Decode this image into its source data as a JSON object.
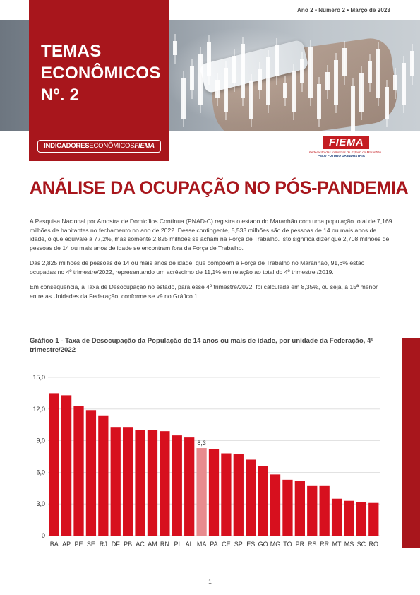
{
  "header": {
    "issue": "Ano 2 • Número 2 • Março de 2023",
    "title_lines": [
      "TEMAS",
      "ECONÔMICOS",
      "Nº. 2"
    ],
    "badge_part1": "INDICADORES",
    "badge_part2": "ECONÔMICOS",
    "badge_part3": "FIEMA",
    "logo_text": "FIEMA",
    "logo_sub1": "Federação das Indústrias do Estado do Maranhão",
    "logo_sub2": "PELO FUTURO DA INDÚSTRIA"
  },
  "article": {
    "headline": "ANÁLISE DA OCUPAÇÃO NO PÓS-PANDEMIA",
    "paragraphs": [
      "A Pesquisa Nacional por Amostra de Domicílios Contínua (PNAD-C) registra o estado do Maranhão com uma população total de 7,169 milhões de habitantes no fechamento no ano de 2022. Desse contingente, 5,533 milhões são de pessoas de 14 ou mais anos de idade, o que equivale a 77,2%, mas somente 2,825 milhões se acham na Força de Trabalho. Isto significa dizer que 2,708 milhões de pessoas de 14 ou mais anos de idade se encontram fora da Força de Trabalho.",
      "Das 2,825 milhões de pessoas de 14 ou mais anos de idade, que compõem a Força de Trabalho no Maranhão, 91,6% estão ocupadas no 4º trimestre/2022, representando um acréscimo de 11,1% em relação ao total do 4º trimestre /2019.",
      "Em consequência, a Taxa de Desocupação no estado, para esse 4º trimestre/2022, foi calculada em 8,35%, ou seja, a 15ª menor entre as Unidades da Federação, conforme se vê no Gráfico 1."
    ]
  },
  "page_number": "1",
  "colors": {
    "brand_red": "#a8161c",
    "bar_red": "#d7101e",
    "highlight_bar": "#e88b8e"
  },
  "chart_data": {
    "type": "bar",
    "title": "Gráfico 1 - Taxa de Desocupação da População de 14 anos ou mais de idade, por unidade da Federação, 4º trimestre/2022",
    "categories": [
      "BA",
      "AP",
      "PE",
      "SE",
      "RJ",
      "DF",
      "PB",
      "AC",
      "AM",
      "RN",
      "PI",
      "AL",
      "MA",
      "PA",
      "CE",
      "SP",
      "ES",
      "GO",
      "MG",
      "TO",
      "PR",
      "RS",
      "RR",
      "MT",
      "MS",
      "SC",
      "RO"
    ],
    "values": [
      13.5,
      13.3,
      12.3,
      11.9,
      11.4,
      10.3,
      10.3,
      10.0,
      10.0,
      9.9,
      9.5,
      9.3,
      8.3,
      8.2,
      7.8,
      7.7,
      7.2,
      6.6,
      5.8,
      5.3,
      5.2,
      4.7,
      4.7,
      3.5,
      3.3,
      3.2,
      3.1
    ],
    "highlight": "MA",
    "data_labels": [
      {
        "category": "MA",
        "text": "8,3"
      }
    ],
    "y_ticks": [
      "0",
      "3,0",
      "6,0",
      "9,0",
      "12,0",
      "15,0"
    ],
    "y_tick_values": [
      0,
      3,
      6,
      9,
      12,
      15
    ],
    "ylim": [
      0,
      15
    ],
    "grid": true
  }
}
